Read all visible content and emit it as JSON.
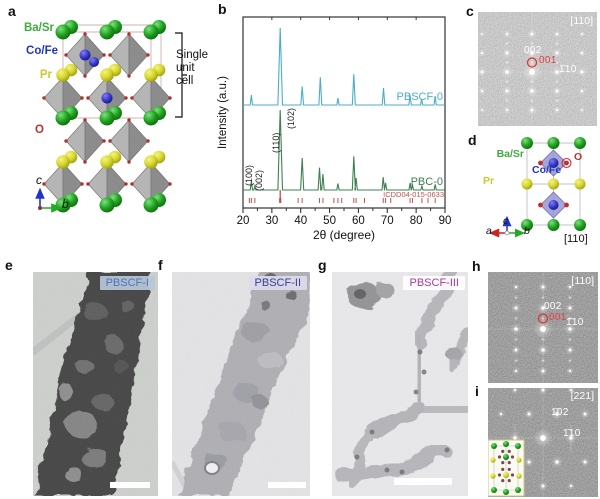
{
  "figure_labels": {
    "a": "a",
    "b": "b",
    "c": "c",
    "d": "d",
    "e": "e",
    "f": "f",
    "g": "g",
    "h": "h",
    "i": "i"
  },
  "panel_a": {
    "atom_labels": {
      "ba_sr": "Ba/Sr",
      "co_fe": "Co/Fe",
      "pr": "Pr",
      "o": "O"
    },
    "atom_colors": {
      "ba_sr": "#3faa3f",
      "co_fe": "#2233bb",
      "pr": "#c9c930",
      "o": "#bb3333"
    },
    "unit_cell_note": "Single\nunit\ncell",
    "axis_c": "c",
    "axis_b": "b"
  },
  "chart_data": {
    "type": "line",
    "title": "",
    "xlabel": "2θ (degree)",
    "ylabel": "Intensity (a.u.)",
    "xlim": [
      20,
      90
    ],
    "xticks": [
      20,
      30,
      40,
      50,
      60,
      70,
      80,
      90
    ],
    "grid": false,
    "legend_position": "inline-right",
    "series": [
      {
        "name": "PBSCF-0",
        "color": "#4aaec9",
        "peaks": [
          [
            22.9,
            0.13
          ],
          [
            32.9,
            1.0
          ],
          [
            40.5,
            0.24
          ],
          [
            46.8,
            0.36
          ],
          [
            52.9,
            0.09
          ],
          [
            58.4,
            0.4
          ],
          [
            68.7,
            0.22
          ],
          [
            77.9,
            0.13
          ],
          [
            81.9,
            0.08
          ],
          [
            86.6,
            0.11
          ]
        ]
      },
      {
        "name": "PBC-0",
        "color": "#3e8050",
        "peaks": [
          [
            22.9,
            0.11
          ],
          [
            24.1,
            0.05
          ],
          [
            32.9,
            1.0
          ],
          [
            40.5,
            0.4
          ],
          [
            46.5,
            0.28
          ],
          [
            47.7,
            0.2
          ],
          [
            52.9,
            0.08
          ],
          [
            58.4,
            0.42
          ],
          [
            59.2,
            0.15
          ],
          [
            68.6,
            0.16
          ],
          [
            69.4,
            0.09
          ],
          [
            77.9,
            0.09
          ],
          [
            78.7,
            0.07
          ],
          [
            82.0,
            0.05
          ],
          [
            86.6,
            0.07
          ]
        ]
      }
    ],
    "reference": {
      "name": "ICDD04-015-0633",
      "color": "#c0504d",
      "ticks": [
        22.2,
        22.9,
        24.1,
        32.7,
        33.1,
        39.1,
        40.5,
        46.5,
        47.7,
        51.5,
        52.9,
        54.2,
        58.4,
        59.2,
        62.1,
        68.6,
        69.4,
        71.2,
        77.9,
        78.7,
        82.0,
        84.1,
        86.6
      ],
      "tall_tick": 32.9
    },
    "peak_annotations": [
      {
        "text": "(100)",
        "x": 22.9
      },
      {
        "text": "(002)",
        "x": 24.1
      },
      {
        "text": "(110)",
        "x": 32.3
      },
      {
        "text": "(102)",
        "x": 33.4
      }
    ]
  },
  "panel_c": {
    "zone": "[110]",
    "spot_002": "002",
    "spot_001": "001",
    "spot_110": "1̄10"
  },
  "panel_d": {
    "atom_labels": {
      "ba_sr": "Ba/Sr",
      "co_fe": "Co/Fe",
      "pr": "Pr",
      "o": "O"
    },
    "atom_colors": {
      "ba_sr": "#3faa3f",
      "co_fe": "#2233bb",
      "pr": "#c9c930",
      "o": "#bb3333"
    },
    "axis_a": "a",
    "axis_b": "b",
    "axis_c": "c",
    "zone": "[110]"
  },
  "panel_e": {
    "sample": "PBSCF-I",
    "label_color": "#4a74c0",
    "box_color": "rgba(184,199,216,0.92)"
  },
  "panel_f": {
    "sample": "PBSCF-II",
    "label_color": "#3d3d90",
    "box_color": "rgba(218,218,235,0.95)"
  },
  "panel_g": {
    "sample": "PBSCF-III",
    "label_color": "#a83a9c",
    "box_color": "rgba(255,255,255,0.9)"
  },
  "panel_h": {
    "zone": "[110]",
    "spot_002": "002",
    "spot_001": "001",
    "spot_110": "1̄10"
  },
  "panel_i": {
    "zone": "[221]",
    "spot_102": "1̄02",
    "spot_110": "1̄10"
  }
}
